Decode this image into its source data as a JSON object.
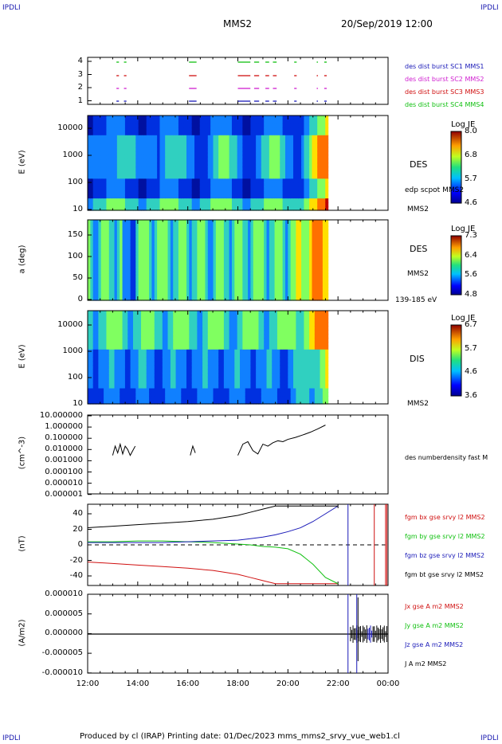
{
  "corner_tl": "IPDLI",
  "corner_tr": "IPDLI",
  "corner_bl": "IPDLI",
  "corner_br": "IPDLI",
  "header": {
    "mission": "MMS2",
    "datetime": "20/Sep/2019 12:00"
  },
  "footer": "Produced by cl (IRAP)   Printing date: 01/Dec/2023   mms_mms2_srvy_vue_web1.cl",
  "colors": {
    "sc1": "#1a1ab8",
    "sc2": "#d020d0",
    "sc3": "#d01010",
    "sc4": "#10c010",
    "black": "#000000"
  },
  "chart_data": [
    {
      "type": "scatter",
      "title": "burst availability",
      "y_ticks": [
        "4",
        "3",
        "2",
        "1"
      ],
      "legend": [
        {
          "label": "des dist burst SC1 MMS1",
          "color": "#1a1ab8"
        },
        {
          "label": "des dist burst SC2 MMS2",
          "color": "#d020d0"
        },
        {
          "label": "des dist burst SC3 MMS3",
          "color": "#d01010"
        },
        {
          "label": "des dist burst SC4 MMS4",
          "color": "#10c010"
        }
      ],
      "segments_hours": [
        [
          13.15,
          13.25
        ],
        [
          13.45,
          13.55
        ],
        [
          16.05,
          16.35
        ],
        [
          18.0,
          18.5
        ],
        [
          18.65,
          18.85
        ],
        [
          19.1,
          19.25
        ],
        [
          19.4,
          19.55
        ],
        [
          20.25,
          20.35
        ],
        [
          21.15,
          21.2
        ],
        [
          21.45,
          21.55
        ]
      ]
    },
    {
      "type": "heatmap",
      "ylabel": "E (eV)",
      "y_ticks": [
        "10000",
        "1000",
        "100",
        "10"
      ],
      "side_labels": [
        "DES",
        "edp scpot MMS2",
        "MMS2"
      ],
      "colorbar": {
        "title": "Log JE",
        "ticks": [
          "8.0",
          "6.8",
          "5.7",
          "4.6"
        ]
      }
    },
    {
      "type": "heatmap",
      "ylabel": "a (deg)",
      "y_ticks": [
        "150",
        "100",
        "50",
        "0"
      ],
      "side_labels": [
        "DES",
        "MMS2",
        "139-185 eV"
      ],
      "colorbar": {
        "title": "Log JE",
        "ticks": [
          "7.3",
          "6.4",
          "5.6",
          "4.8"
        ]
      }
    },
    {
      "type": "heatmap",
      "ylabel": "E (eV)",
      "y_ticks": [
        "10000",
        "1000",
        "100",
        "10"
      ],
      "side_labels": [
        "DIS",
        "MMS2"
      ],
      "colorbar": {
        "title": "Log JE",
        "ticks": [
          "6.7",
          "5.7",
          "4.6",
          "3.6"
        ]
      }
    },
    {
      "type": "line",
      "ylabel": "(cm^-3)",
      "y_ticks": [
        "10.000000",
        "1.000000",
        "0.100000",
        "0.010000",
        "0.001000",
        "0.000100",
        "0.000010",
        "0.000001"
      ],
      "legend": [
        {
          "label": "des numberdensity fast M",
          "color": "#000000"
        }
      ],
      "x_hours": [
        13.0,
        13.1,
        13.2,
        13.3,
        13.4,
        13.5,
        13.6,
        13.7,
        13.9,
        16.1,
        16.2,
        16.3,
        18.0,
        18.2,
        18.4,
        18.6,
        18.8,
        19.0,
        19.2,
        19.4,
        19.6,
        19.8,
        20.0,
        20.3,
        20.6,
        20.9,
        21.2,
        21.5
      ],
      "values": [
        0.003,
        0.02,
        0.005,
        0.03,
        0.004,
        0.02,
        0.01,
        0.003,
        0.02,
        0.003,
        0.02,
        0.005,
        0.003,
        0.03,
        0.05,
        0.008,
        0.004,
        0.03,
        0.02,
        0.04,
        0.06,
        0.05,
        0.08,
        0.12,
        0.2,
        0.35,
        0.7,
        1.5
      ]
    },
    {
      "type": "line",
      "ylabel": "(nT)",
      "y_ticks": [
        "40",
        "20",
        "0",
        "-20",
        "-40"
      ],
      "ylim": [
        -50,
        50
      ],
      "legend": [
        {
          "label": "fgm bx gse srvy l2 MMS2",
          "color": "#d01010"
        },
        {
          "label": "fgm by gse srvy l2 MMS2",
          "color": "#10c010"
        },
        {
          "label": "fgm bz gse srvy l2 MMS2",
          "color": "#1a1ab8"
        },
        {
          "label": "fgm bt gse srvy l2 MMS2",
          "color": "#000000"
        }
      ],
      "x_hours": [
        12.0,
        13.0,
        14.0,
        15.0,
        16.0,
        17.0,
        18.0,
        18.5,
        19.0,
        19.5,
        20.0,
        20.5,
        21.0,
        21.5,
        22.0
      ],
      "series": [
        {
          "name": "bx",
          "values": [
            -22,
            -24,
            -26,
            -28,
            -30,
            -33,
            -38,
            -42,
            -46,
            -50,
            -50,
            -50,
            -50,
            -50,
            -50
          ]
        },
        {
          "name": "by",
          "values": [
            4,
            4,
            5,
            5,
            4,
            3,
            1,
            0,
            -2,
            -3,
            -5,
            -12,
            -25,
            -42,
            -50
          ]
        },
        {
          "name": "bz",
          "values": [
            3,
            3,
            3,
            3,
            4,
            5,
            6,
            8,
            10,
            13,
            17,
            22,
            30,
            40,
            50
          ]
        },
        {
          "name": "bt",
          "values": [
            22,
            24,
            26,
            28,
            30,
            33,
            38,
            42,
            46,
            50,
            50,
            50,
            50,
            50,
            50
          ]
        }
      ]
    },
    {
      "type": "line",
      "ylabel": "(A/m2)",
      "y_ticks": [
        "0.000010",
        "0.000005",
        "0.000000",
        "-0.000005",
        "-0.000010"
      ],
      "ylim": [
        -1e-05,
        1e-05
      ],
      "legend": [
        {
          "label": "Jx gse A m2 MMS2",
          "color": "#d01010"
        },
        {
          "label": "Jy gse A m2 MMS2",
          "color": "#10c010"
        },
        {
          "label": "Jz gse A m2 MMS2",
          "color": "#1a1ab8"
        },
        {
          "label": "J A m2 MMS2",
          "color": "#000000"
        }
      ]
    }
  ],
  "x_axis": {
    "ticks": [
      "12:00",
      "14:00",
      "16:00",
      "18:00",
      "20:00",
      "22:00",
      "00:00"
    ]
  }
}
